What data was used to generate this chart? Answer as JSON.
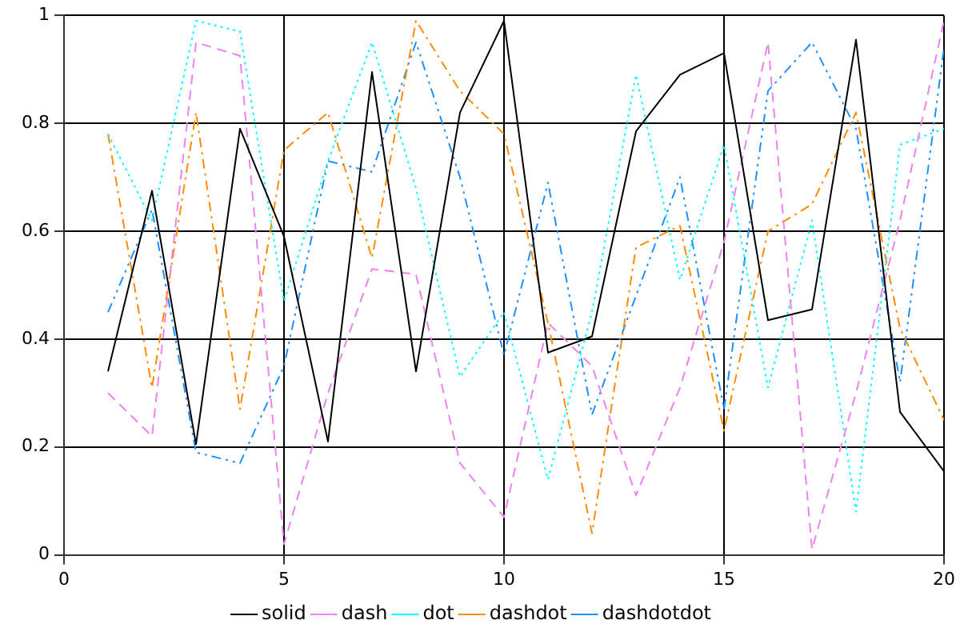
{
  "chart_data": {
    "type": "line",
    "x": [
      1,
      2,
      3,
      4,
      5,
      6,
      7,
      8,
      9,
      10,
      11,
      12,
      13,
      14,
      15,
      16,
      17,
      18,
      19,
      20
    ],
    "series": [
      {
        "name": "solid",
        "color": "#000000",
        "line_style": "solid",
        "values": [
          0.34,
          0.675,
          0.205,
          0.79,
          0.59,
          0.21,
          0.895,
          0.34,
          0.82,
          0.99,
          0.375,
          0.405,
          0.785,
          0.89,
          0.93,
          0.435,
          0.455,
          0.955,
          0.265,
          0.155
        ]
      },
      {
        "name": "dash",
        "color": "#ee82ee",
        "line_style": "dashed",
        "values": [
          0.3,
          0.22,
          0.95,
          0.925,
          0.02,
          0.3,
          0.53,
          0.52,
          0.17,
          0.07,
          0.43,
          0.35,
          0.11,
          0.31,
          0.58,
          0.95,
          0.01,
          0.3,
          0.62,
          0.99
        ]
      },
      {
        "name": "dot",
        "color": "#00ffff",
        "line_style": "dotted",
        "values": [
          0.78,
          0.62,
          0.99,
          0.97,
          0.47,
          0.73,
          0.95,
          0.68,
          0.33,
          0.45,
          0.14,
          0.45,
          0.89,
          0.51,
          0.76,
          0.31,
          0.62,
          0.08,
          0.76,
          0.79
        ]
      },
      {
        "name": "dashdot",
        "color": "#ff8c00",
        "line_style": "dashdot",
        "values": [
          0.78,
          0.31,
          0.82,
          0.27,
          0.75,
          0.82,
          0.55,
          0.99,
          0.86,
          0.78,
          0.43,
          0.04,
          0.57,
          0.61,
          0.23,
          0.6,
          0.65,
          0.82,
          0.42,
          0.25
        ]
      },
      {
        "name": "dashdotdot",
        "color": "#1e90ff",
        "line_style": "dashdotdot",
        "values": [
          0.45,
          0.64,
          0.19,
          0.17,
          0.35,
          0.73,
          0.71,
          0.95,
          0.7,
          0.37,
          0.69,
          0.26,
          0.48,
          0.7,
          0.27,
          0.86,
          0.95,
          0.79,
          0.32,
          0.94
        ]
      }
    ],
    "xlim": [
      0,
      20
    ],
    "xticks": [
      0,
      5,
      10,
      15,
      20
    ],
    "ylim": [
      0,
      1
    ],
    "yticks": [
      0,
      0.2,
      0.4,
      0.6,
      0.8,
      1
    ],
    "grid": true,
    "legend": "bottom",
    "marker": "none"
  }
}
